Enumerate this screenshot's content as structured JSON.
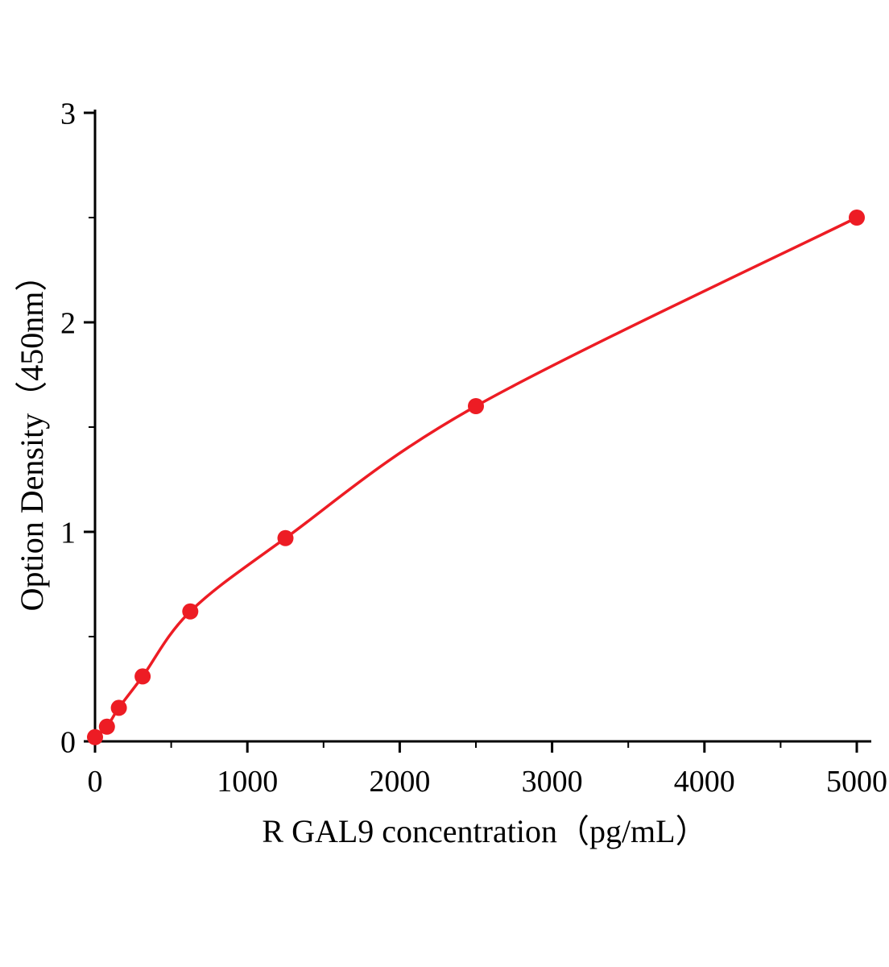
{
  "chart_data": {
    "type": "line",
    "title": "",
    "xlabel": "R GAL9 concentration（pg/mL）",
    "ylabel": "Option Density（450nm）",
    "series": [
      {
        "name": "R GAL9 standard curve",
        "x": [
          0,
          78.1,
          156.3,
          312.5,
          625,
          1250,
          2500,
          5000
        ],
        "y": [
          0.02,
          0.07,
          0.16,
          0.31,
          0.62,
          0.97,
          1.6,
          2.5
        ]
      }
    ],
    "xlim": [
      0,
      5000
    ],
    "ylim": [
      0,
      3
    ],
    "x_ticks": [
      0,
      1000,
      2000,
      3000,
      4000,
      5000
    ],
    "y_ticks": [
      0,
      1,
      2,
      3
    ],
    "x_minor_ticks": [
      500,
      1500,
      2500,
      3500,
      4500
    ],
    "y_minor_ticks": [
      0.5,
      1.5,
      2.5
    ],
    "grid": false,
    "legend": "none",
    "line_color": "#ed1c24",
    "marker_color": "#ed1c24",
    "axis_color": "#000000"
  }
}
